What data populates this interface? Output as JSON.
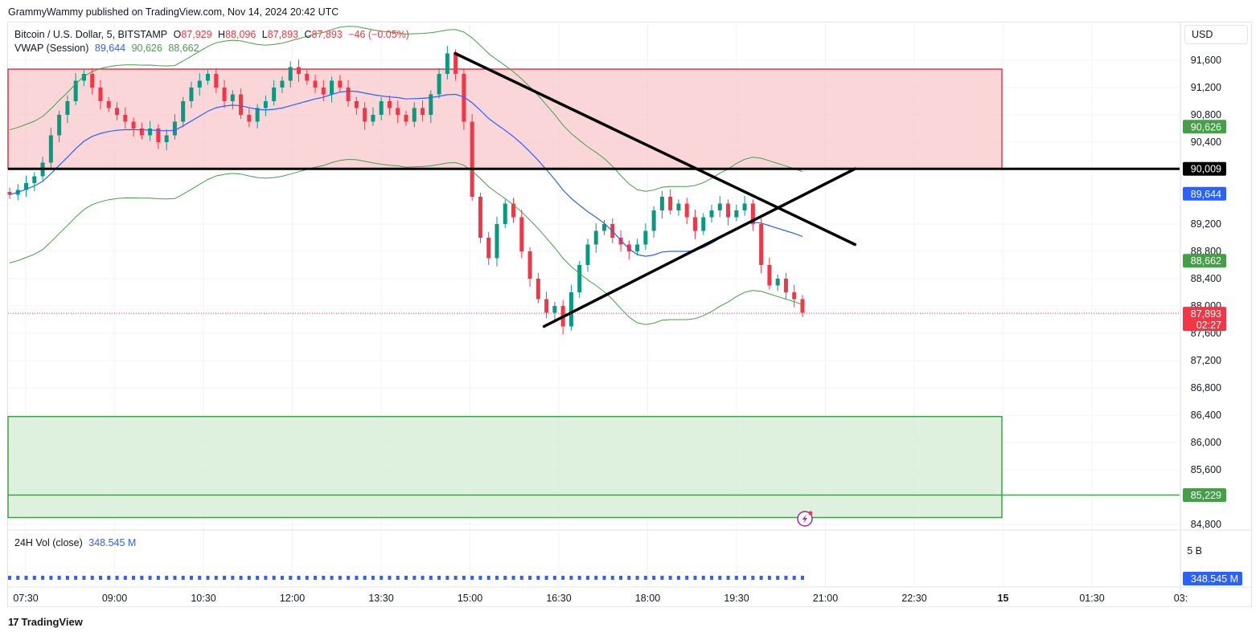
{
  "publisher": "GrammyWammy published on TradingView.com, Nov 14, 2024 20:42 UTC",
  "legend": {
    "symbol": "Bitcoin / U.S. Dollar, 5, BITSTAMP",
    "o_label": "O",
    "o_value": "87,929",
    "h_label": "H",
    "h_value": "88,096",
    "l_label": "L",
    "l_value": "87,893",
    "c_label": "C",
    "c_value": "87,893",
    "change": "−46 (−0.05%)",
    "vwap_label": "VWAP (Session)",
    "vwap_vals": [
      "89,644",
      "90,626",
      "88,662"
    ],
    "vol_label": "24H Vol (close)",
    "vol_value": "348.545 M"
  },
  "currency": "USD",
  "brand": "TradingView",
  "colors": {
    "up": "#089981",
    "down": "#f23645",
    "vwap": "#2962ff",
    "band": "#43a047",
    "supply_fill": "#f8c8cc",
    "supply_border": "#e53946",
    "demand_fill": "#d8eed8",
    "demand_border": "#43a047"
  },
  "chart_data": {
    "type": "candlestick",
    "symbol": "BTC/USD",
    "timeframe": "5",
    "ylim": [
      84600,
      91900
    ],
    "y_ticks": [
      91600,
      91200,
      90800,
      90400,
      89200,
      88800,
      88400,
      88000,
      87600,
      87200,
      86800,
      86400,
      86000,
      85600,
      84800
    ],
    "x_ticks": [
      "07:30",
      "09:00",
      "10:30",
      "12:00",
      "13:30",
      "15:00",
      "16:30",
      "18:00",
      "19:30",
      "21:00",
      "22:30",
      "15",
      "01:30",
      "03:"
    ],
    "price_tags": [
      {
        "value": 90626,
        "label": "90,626",
        "color": "#43a047"
      },
      {
        "value": 90009,
        "label": "90,009",
        "color": "#000000"
      },
      {
        "value": 89644,
        "label": "89,644",
        "color": "#2962ff"
      },
      {
        "value": 88662,
        "label": "88,662",
        "color": "#43a047"
      },
      {
        "value": 87893,
        "label": "87,893",
        "sublabel": "02:27",
        "color": "#f23645"
      },
      {
        "value": 85229,
        "label": "85,229",
        "color": "#43a047"
      }
    ],
    "horizontal_lines": [
      {
        "value": 90009,
        "color": "#000000",
        "width": 3
      },
      {
        "value": 85229,
        "color": "#43a047",
        "width": 1.5
      }
    ],
    "zones": [
      {
        "name": "supply",
        "from": 90009,
        "to": 91470
      },
      {
        "name": "demand",
        "from": 84900,
        "to": 86380
      }
    ],
    "trendlines": [
      {
        "from": [
          "14:45",
          91700
        ],
        "to": [
          "21:30",
          88900
        ]
      },
      {
        "from": [
          "16:15",
          87700
        ],
        "to": [
          "21:30",
          90009
        ]
      }
    ],
    "close_prices": [
      89630,
      89700,
      89800,
      89900,
      90100,
      90500,
      90800,
      91000,
      91300,
      91400,
      91200,
      91000,
      90900,
      90800,
      90700,
      90600,
      90500,
      90600,
      90400,
      90500,
      90700,
      91000,
      91200,
      91300,
      91400,
      91200,
      91000,
      91100,
      90800,
      90700,
      90900,
      91000,
      91200,
      91300,
      91500,
      91400,
      91300,
      91200,
      91100,
      91300,
      91200,
      91000,
      90900,
      90700,
      90800,
      91000,
      90900,
      90800,
      90700,
      90900,
      90800,
      91100,
      91400,
      91700,
      91400,
      90700,
      89600,
      89000,
      88700,
      89200,
      89500,
      89300,
      88800,
      88400,
      88100,
      87900,
      88000,
      87700,
      88200,
      88600,
      88900,
      89100,
      89200,
      89000,
      88900,
      88800,
      88900,
      89100,
      89400,
      89600,
      89400,
      89500,
      89300,
      89100,
      89300,
      89400,
      89500,
      89300,
      89400,
      89500,
      89200,
      88600,
      88300,
      88400,
      88200,
      88100,
      87900
    ]
  },
  "volume_pane": {
    "scale_label": "5 B",
    "last_label": "348.545 M"
  },
  "event_icon": "lightning-icon"
}
